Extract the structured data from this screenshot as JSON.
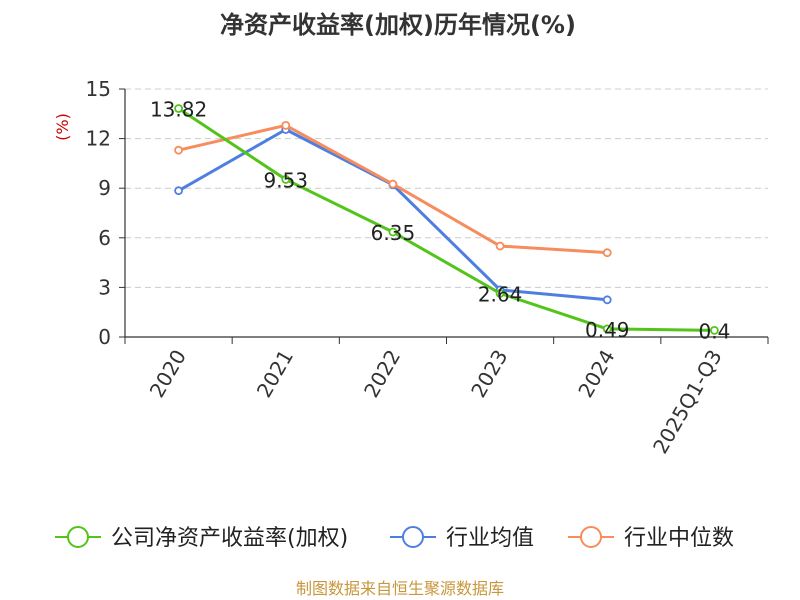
{
  "chart_data": {
    "type": "line",
    "title": "净资产收益率(加权)历年情况(%)",
    "ylabel": "(%)",
    "xlabel": "",
    "categories": [
      "2020",
      "2021",
      "2022",
      "2023",
      "2024",
      "2025Q1-Q3"
    ],
    "ylim": [
      0,
      15
    ],
    "yticks": [
      0,
      3,
      6,
      9,
      12,
      15
    ],
    "grid": true,
    "legend_position": "bottom",
    "series": [
      {
        "name": "公司净资产收益率(加权)",
        "color": "#52c41a",
        "values": [
          13.82,
          9.53,
          6.35,
          2.64,
          0.49,
          0.4
        ],
        "labels": [
          "13.82",
          "9.53",
          "6.35",
          "2.64",
          "0.49",
          "0.4"
        ]
      },
      {
        "name": "行业均值",
        "color": "#4e7fe0",
        "values": [
          8.85,
          12.55,
          9.2,
          2.85,
          2.25,
          null
        ]
      },
      {
        "name": "行业中位数",
        "color": "#f78c5c",
        "values": [
          11.3,
          12.8,
          9.25,
          5.5,
          5.1,
          null
        ]
      }
    ]
  },
  "footer": {
    "source": "制图数据来自恒生聚源数据库"
  },
  "colors": {
    "footer": "#c8973c",
    "ylabel": "#cc0000",
    "grid": "#cccccc",
    "axis": "#333333"
  }
}
